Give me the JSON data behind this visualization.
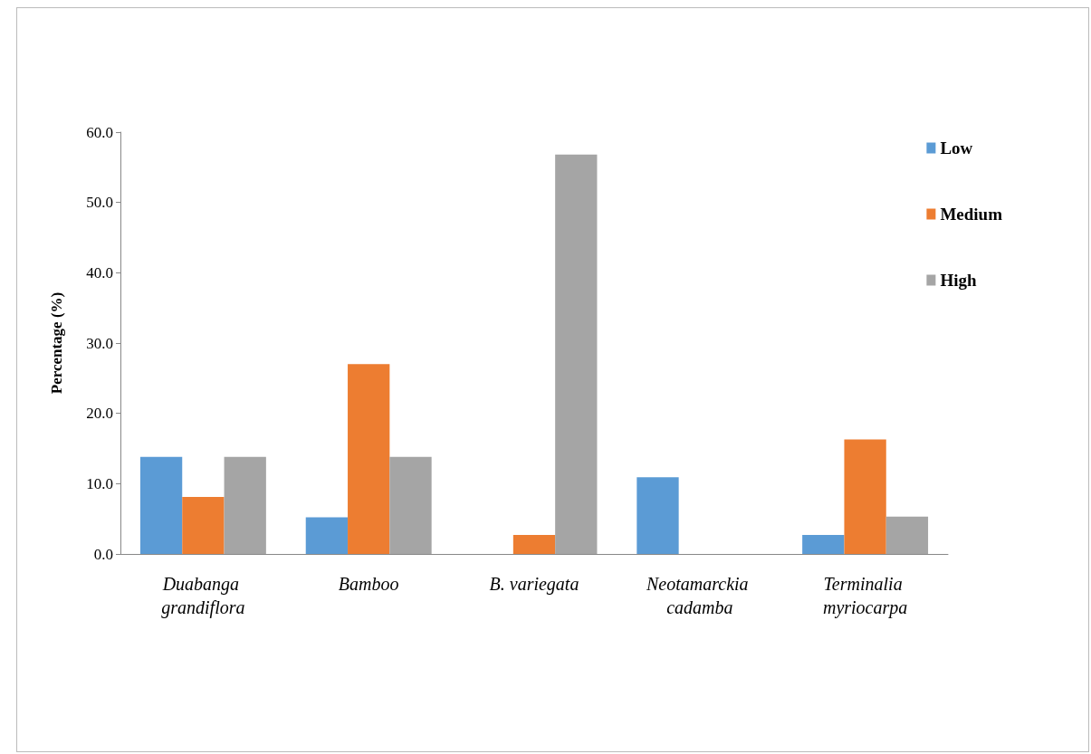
{
  "chart_data": {
    "type": "bar",
    "ylabel": "Percentage (%)",
    "categories": [
      "Duabanga grandiflora",
      "Bamboo",
      "B. variegata",
      "Neotamarckia cadamba",
      "Terminalia myriocarpa"
    ],
    "series": [
      {
        "name": "Low",
        "color": "#5b9bd5",
        "values": [
          13.8,
          5.2,
          0,
          10.9,
          2.7
        ]
      },
      {
        "name": "Medium",
        "color": "#ed7d31",
        "values": [
          8.1,
          27.0,
          2.7,
          0,
          16.3
        ]
      },
      {
        "name": "High",
        "color": "#a5a5a5",
        "values": [
          13.8,
          13.8,
          56.8,
          0,
          5.3
        ]
      }
    ],
    "ylim": [
      0,
      60
    ],
    "yticks": [
      {
        "value": 0,
        "label": "0.0"
      },
      {
        "value": 10,
        "label": "10.0"
      },
      {
        "value": 20,
        "label": "20.0"
      },
      {
        "value": 30,
        "label": "30.0"
      },
      {
        "value": 40,
        "label": "40.0"
      },
      {
        "value": 50,
        "label": "50.0"
      },
      {
        "value": 60,
        "label": "60.0"
      }
    ],
    "grid": false,
    "legend": "top right"
  }
}
